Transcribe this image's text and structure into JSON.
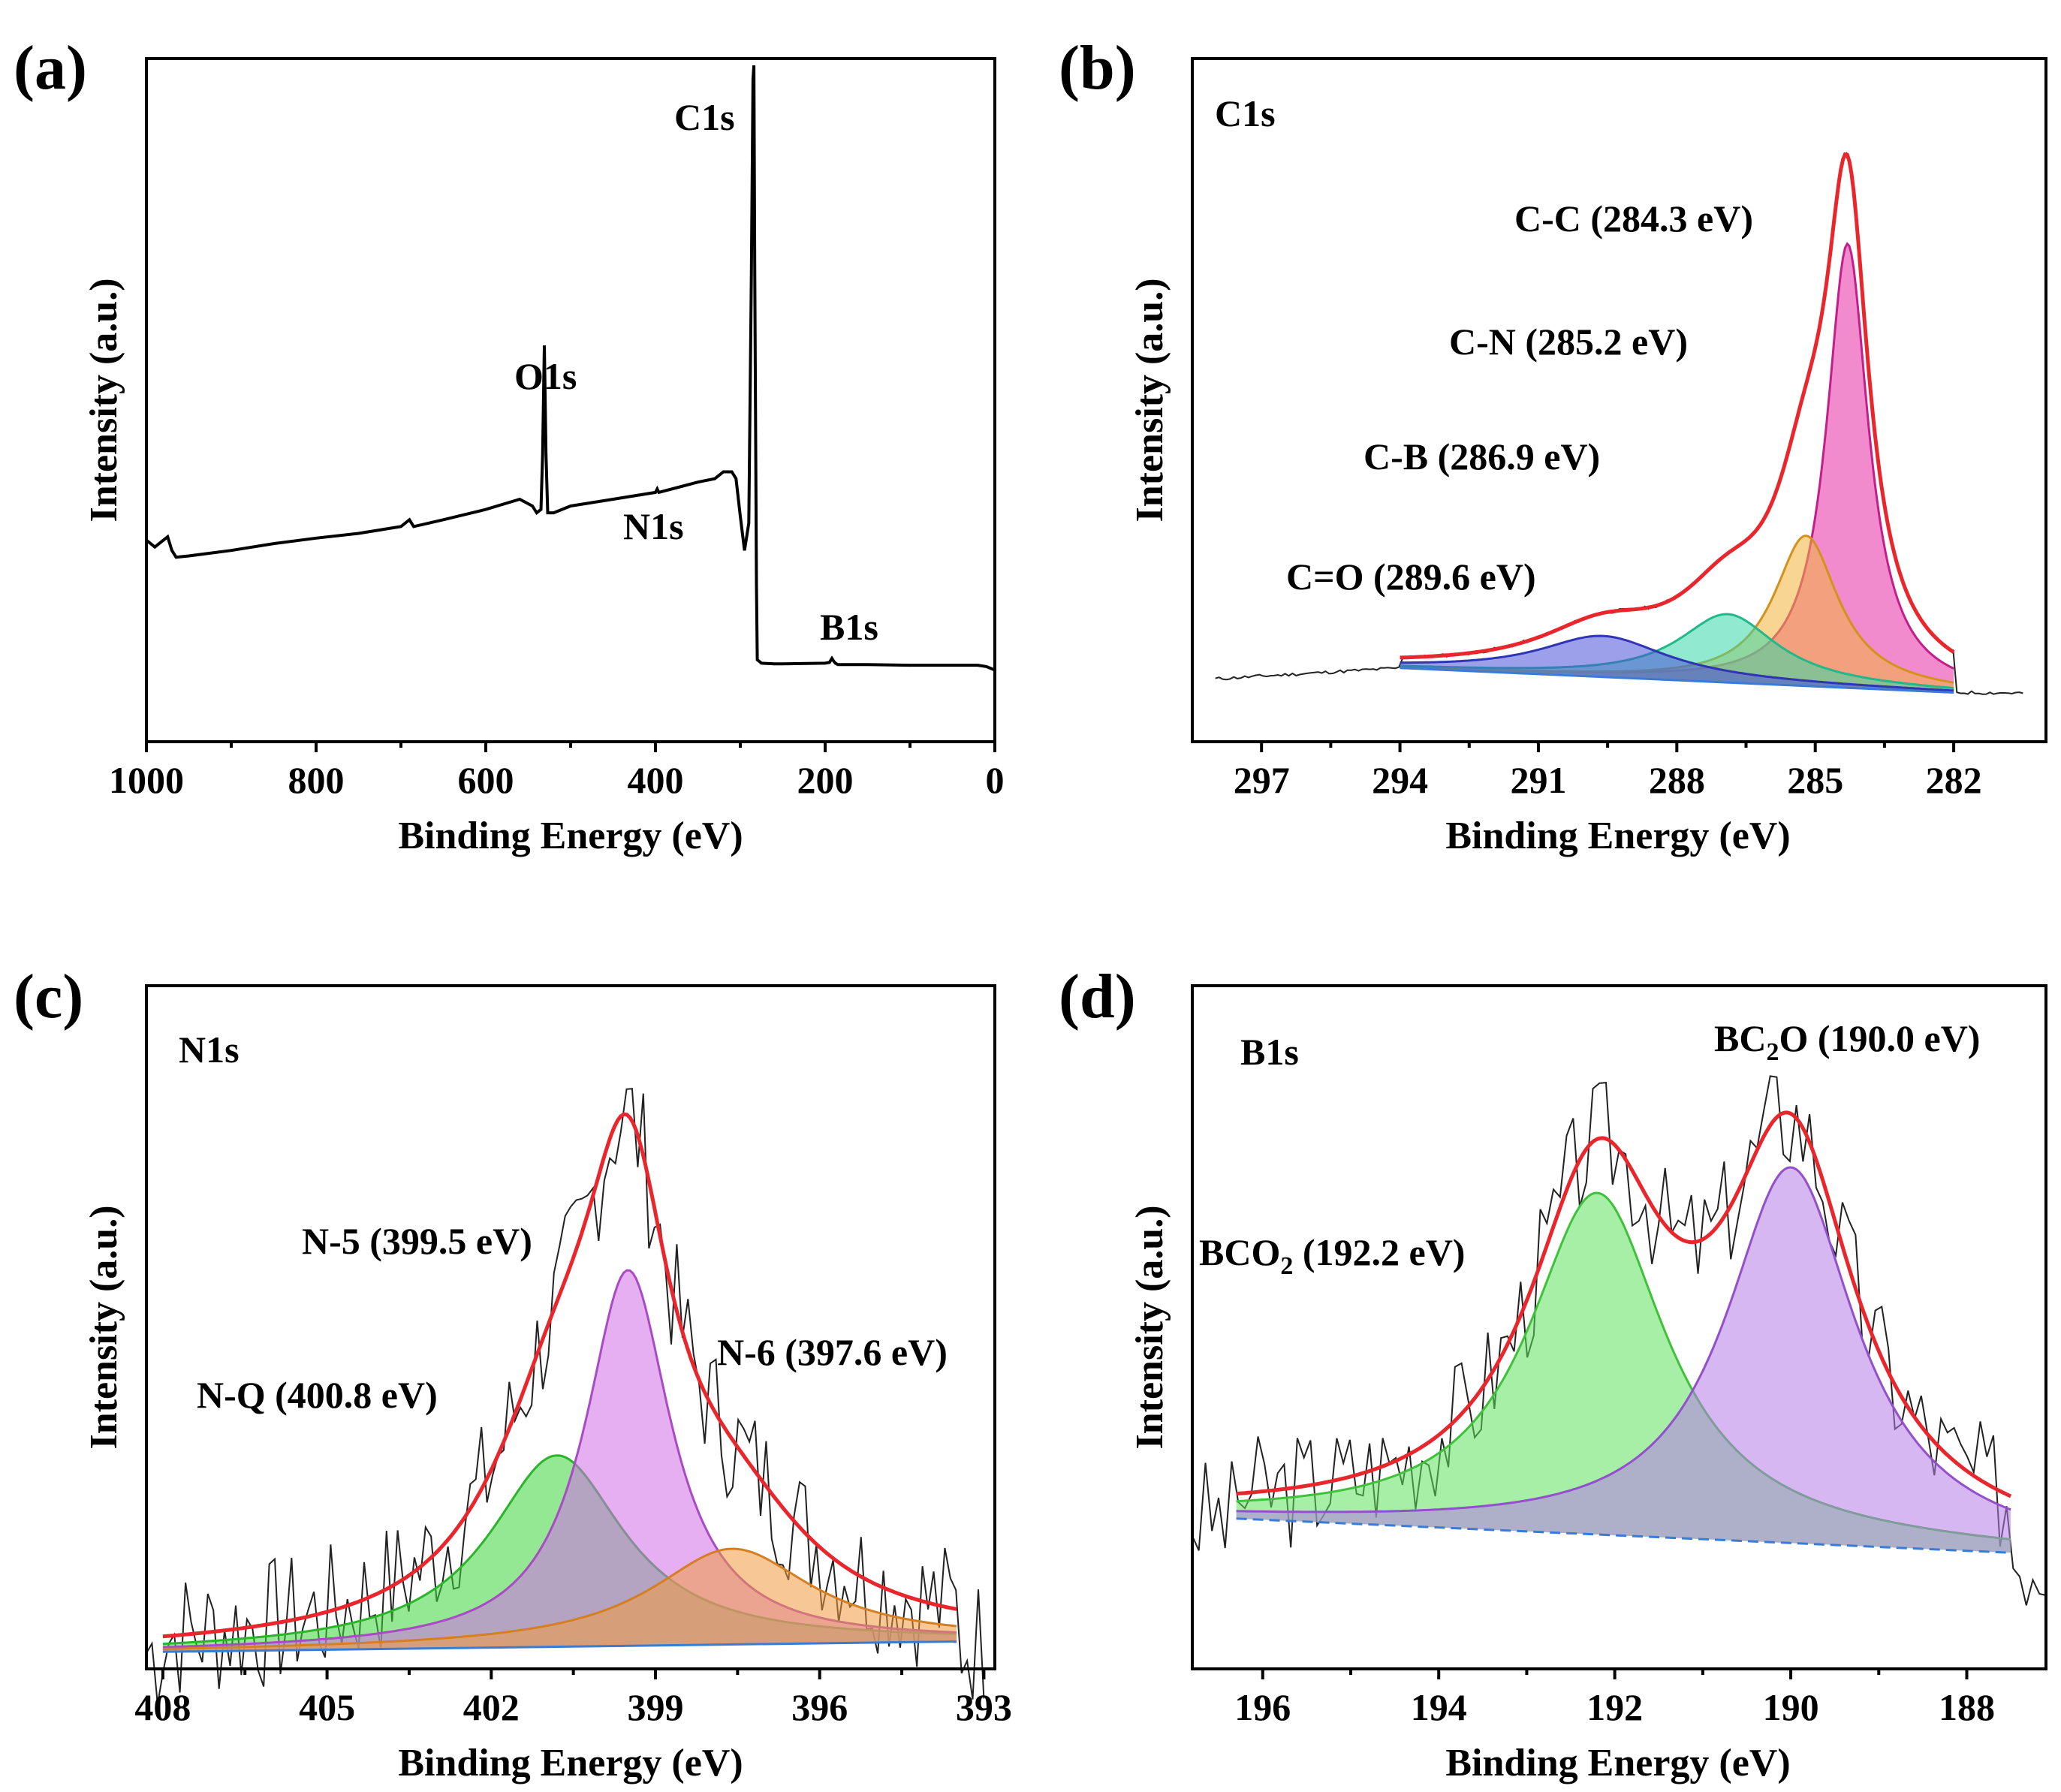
{
  "chart_data": [
    {
      "type": "line",
      "panel": "(a)",
      "title": "",
      "xlabel": "Binding Energy (eV)",
      "ylabel": "Intensity (a.u.)",
      "xlim": [
        1000,
        0
      ],
      "ylim": [
        0,
        100
      ],
      "xticks": [
        "1000",
        "800",
        "600",
        "400",
        "200",
        "0"
      ],
      "annotations": [
        {
          "id": "c1s",
          "text": "C1s",
          "x": 284
        },
        {
          "id": "o1s",
          "text": "O1s",
          "x": 531
        },
        {
          "id": "n1s",
          "text": "N1s",
          "x": 400
        },
        {
          "id": "b1s",
          "text": "B1s",
          "x": 190
        }
      ],
      "series": [
        {
          "name": "survey",
          "color": "#000000",
          "x": [
            1000,
            990,
            985,
            975,
            970,
            965,
            950,
            900,
            850,
            800,
            750,
            700,
            690,
            685,
            650,
            600,
            560,
            545,
            540,
            535,
            533,
            531,
            529,
            527,
            520,
            500,
            450,
            400,
            398,
            396,
            350,
            330,
            320,
            310,
            305,
            300,
            295,
            290,
            287,
            285,
            284,
            283,
            281,
            280,
            275,
            260,
            250,
            200,
            195,
            192,
            190,
            188,
            185,
            150,
            100,
            50,
            20,
            10,
            0
          ],
          "y": [
            29.5,
            28.5,
            29,
            30,
            28,
            27,
            27.2,
            28,
            29,
            29.8,
            30.5,
            31.5,
            32.5,
            31.5,
            32.5,
            34,
            35.5,
            34.5,
            33.5,
            34,
            42,
            58,
            42,
            33.5,
            33.5,
            34.5,
            35.5,
            36.5,
            37,
            36.5,
            38,
            38.5,
            39.5,
            39.5,
            38.5,
            33,
            28,
            32,
            68,
            97,
            99,
            70,
            23,
            12,
            11.5,
            11.4,
            11.4,
            11.5,
            11.6,
            12.2,
            11.8,
            11.5,
            11.3,
            11.3,
            11.2,
            11.2,
            11.2,
            11,
            10.5
          ]
        }
      ]
    },
    {
      "type": "area",
      "panel": "(b)",
      "title": "C1s",
      "xlabel": "Binding Energy (eV)",
      "ylabel": "Intensity (a.u.)",
      "xlim": [
        298.5,
        280
      ],
      "ylim": [
        0,
        100
      ],
      "xticks": [
        "297",
        "294",
        "291",
        "288",
        "285",
        "282"
      ],
      "baseline": [
        [
          294,
          10.8
        ],
        [
          282,
          7.2
        ]
      ],
      "annotations": [
        {
          "id": "cc",
          "text": "C-C (284.3 eV)"
        },
        {
          "id": "cn",
          "text": "C-N (285.2 eV)"
        },
        {
          "id": "cb",
          "text": "C-B (286.9 eV)"
        },
        {
          "id": "co",
          "text": "C=O (289.6 eV)"
        }
      ],
      "components": [
        {
          "name": "C-C (284.3 eV)",
          "center": 284.3,
          "height": 65,
          "width": 0.55,
          "fill": "#e62ba6",
          "stroke": "#c31f8b"
        },
        {
          "name": "C-N (285.2 eV)",
          "center": 285.2,
          "height": 22,
          "width": 0.85,
          "fill": "#f2b23a",
          "stroke": "#d4921c"
        },
        {
          "name": "C-B (286.9 eV)",
          "center": 286.9,
          "height": 10,
          "width": 1.3,
          "fill": "#37d8a8",
          "stroke": "#22b889"
        },
        {
          "name": "C=O (289.6 eV)",
          "center": 289.6,
          "height": 6,
          "width": 1.7,
          "fill": "#4a50d8",
          "stroke": "#3035b5"
        }
      ],
      "envelope_color": "#e8262c",
      "raw_color": "#222222",
      "raw_range": [
        298,
        280.5
      ]
    },
    {
      "type": "area",
      "panel": "(c)",
      "title": "N1s",
      "xlabel": "Binding Energy (eV)",
      "ylabel": "Intensity (a.u.)",
      "xlim": [
        408.3,
        392.8
      ],
      "ylim": [
        0,
        100
      ],
      "xticks": [
        "408",
        "405",
        "402",
        "399",
        "396",
        "393"
      ],
      "baseline": [
        [
          408,
          2.5
        ],
        [
          393.5,
          4
        ]
      ],
      "annotations": [
        {
          "id": "n5",
          "text": "N-5 (399.5 eV)"
        },
        {
          "id": "nq",
          "text": "N-Q (400.8 eV)"
        },
        {
          "id": "n6",
          "text": "N-6 (397.6 eV)"
        }
      ],
      "components": [
        {
          "name": "N-Q (400.8 eV)",
          "center": 400.8,
          "height": 28,
          "width": 1.5,
          "fill": "#3dd43a",
          "stroke": "#2bb52a"
        },
        {
          "name": "N-5 (399.5 eV)",
          "center": 399.5,
          "height": 55,
          "width": 0.95,
          "fill": "#d06ee8",
          "stroke": "#a94bc4"
        },
        {
          "name": "N-6 (397.6 eV)",
          "center": 397.6,
          "height": 14,
          "width": 1.8,
          "fill": "#f09a3e",
          "stroke": "#d57e22"
        }
      ],
      "envelope_color": "#e8262c",
      "raw_color": "#222222",
      "raw_range": [
        408.3,
        393
      ]
    },
    {
      "type": "area",
      "panel": "(d)",
      "title": "B1s",
      "xlabel": "Binding Energy (eV)",
      "ylabel": "Intensity (a.u.)",
      "xlim": [
        196.8,
        187.1
      ],
      "ylim": [
        0,
        100
      ],
      "xticks": [
        "196",
        "194",
        "192",
        "190",
        "188"
      ],
      "baseline": [
        [
          196.3,
          22
        ],
        [
          187.5,
          17
        ]
      ],
      "annotations": [
        {
          "id": "bc2o",
          "text_main": "BC",
          "text_sub": "2",
          "text_rest": "O (190.0 eV)"
        },
        {
          "id": "bco2",
          "text_main": "BCO",
          "text_sub": "2",
          "text_rest": " (192.2 eV)"
        }
      ],
      "components": [
        {
          "name": "BCO2 (192.2 eV)",
          "center": 192.2,
          "height": 50,
          "width": 0.95,
          "fill": "#5fe25c",
          "stroke": "#3fc13c"
        },
        {
          "name": "BC2O (190.0 eV)",
          "center": 190.0,
          "height": 55,
          "width": 0.9,
          "fill": "#b57be8",
          "stroke": "#9250cc"
        }
      ],
      "envelope_color": "#e8262c",
      "raw_color": "#222222",
      "raw_range": [
        196.8,
        187.1
      ]
    }
  ]
}
